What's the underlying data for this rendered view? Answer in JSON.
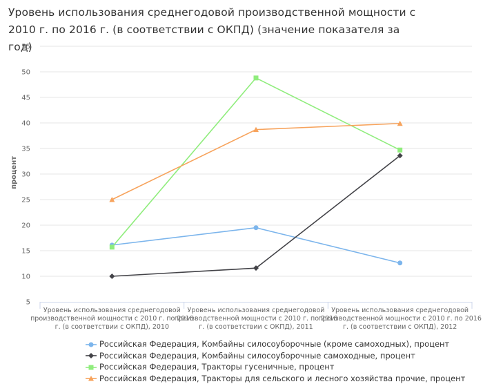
{
  "title": "Уровень использования среднегодовой производственной мощности с 2010 г. по 2016 г. (в соответствии с ОКПД) (значение показателя за год)",
  "chart_data": {
    "type": "line",
    "ylabel": "процент",
    "xlabel": "",
    "ylim": [
      5,
      55
    ],
    "yticks": [
      5,
      10,
      15,
      20,
      25,
      30,
      35,
      40,
      45,
      50,
      55
    ],
    "grid": true,
    "legend": "bottom",
    "categories": [
      [
        "Уровень использования среднегодовой",
        "производственной мощности с 2010 г. по 2016",
        "г. (в соответствии с ОКПД), 2010"
      ],
      [
        "Уровень использования среднегодовой",
        "производственной мощности с 2010 г. по 2016",
        "г. (в соответствии с ОКПД), 2011"
      ],
      [
        "Уровень использования среднегодовой",
        "производственной мощности с 2010 г. по 2016",
        "г. (в соответствии с ОКПД), 2012"
      ]
    ],
    "series": [
      {
        "name": "Российская Федерация, Комбайны силосоуборочные (кроме самоходных), процент",
        "color": "#7cb5ec",
        "marker": "circle",
        "values": [
          16.1,
          19.5,
          12.6
        ]
      },
      {
        "name": "Российская Федерация, Комбайны силосоуборочные самоходные, процент",
        "color": "#434348",
        "marker": "diamond",
        "values": [
          10.0,
          11.6,
          33.6
        ]
      },
      {
        "name": "Российская Федерация, Тракторы гусеничные, процент",
        "color": "#90ed7d",
        "marker": "square",
        "values": [
          15.7,
          48.8,
          34.7
        ]
      },
      {
        "name": "Российская Федерация, Тракторы для сельского и лесного хозяйства прочие, процент",
        "color": "#f7a35c",
        "marker": "triangle",
        "values": [
          25.0,
          38.7,
          39.9
        ]
      }
    ]
  }
}
